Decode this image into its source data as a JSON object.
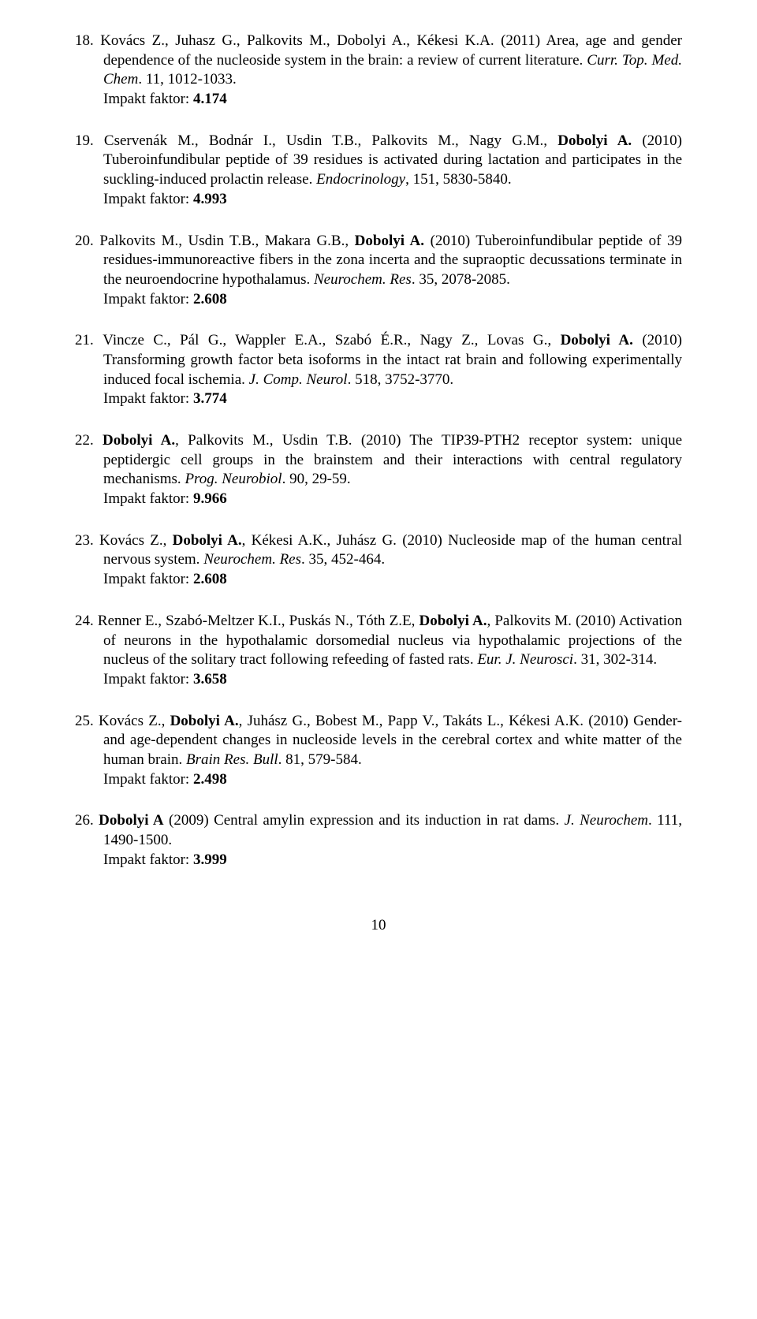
{
  "page_number": "10",
  "impact_label": "Impakt faktor: ",
  "entries": [
    {
      "num": "18.",
      "text_html": "Kovács Z., Juhasz G., Palkovits M., Dobolyi A., Kékesi K.A. (2011) Area, age and gender dependence of the nucleoside system in the brain: a review of current literature. <i>Curr. Top. Med. Chem</i>. 11, 1012-1033.",
      "impact": "4.174"
    },
    {
      "num": "19.",
      "text_html": "Cservenák M., Bodnár I., Usdin T.B., Palkovits M., Nagy G.M., <b>Dobolyi A.</b> (2010) Tuberoinfundibular peptide of 39 residues is activated during lactation and participates in the suckling-induced prolactin release. <i>Endocrinology</i>, 151, 5830-5840.",
      "impact": "4.993"
    },
    {
      "num": "20.",
      "text_html": "Palkovits M., Usdin T.B., Makara G.B., <b>Dobolyi A.</b> (2010) Tuberoinfundibular peptide of 39 residues-immunoreactive fibers in the zona incerta and the supraoptic decussations terminate in the neuroendocrine hypothalamus. <i>Neurochem. Res</i>. 35, 2078-2085.",
      "impact": "2.608"
    },
    {
      "num": "21.",
      "text_html": "Vincze C., Pál G., Wappler E.A., Szabó É.R., Nagy Z., Lovas G., <b>Dobolyi A.</b> (2010) Transforming growth factor beta isoforms in the intact rat brain and following experimentally induced focal ischemia. <i>J. Comp. Neurol</i>. 518, 3752-3770.",
      "impact": "3.774"
    },
    {
      "num": "22.",
      "text_html": "<b>Dobolyi A.</b>, Palkovits M., Usdin T.B. (2010) The TIP39-PTH2 receptor system: unique peptidergic cell groups in the brainstem and their interactions with central regulatory mechanisms. <i>Prog. Neurobiol</i>. 90, 29-59.",
      "impact": "9.966"
    },
    {
      "num": "23.",
      "text_html": "Kovács Z., <b>Dobolyi A.</b>, Kékesi A.K., Juhász G. (2010) Nucleoside map of the human central nervous system. <i>Neurochem. Res</i>. 35, 452-464.",
      "impact": "2.608"
    },
    {
      "num": "24.",
      "text_html": "Renner E., Szabó-Meltzer K.I., Puskás N., Tóth Z.E, <b>Dobolyi A.</b>, Palkovits M. (2010) Activation of neurons in the hypothalamic dorsomedial nucleus via hypothalamic projections of the nucleus of the solitary tract following refeeding of fasted rats. <i>Eur. J. Neurosci</i>. 31, 302-314.",
      "impact": "3.658"
    },
    {
      "num": "25.",
      "text_html": "Kovács Z., <b>Dobolyi A.</b>, Juhász G., Bobest M., Papp V., Takáts L., Kékesi A.K. (2010) Gender- and age-dependent changes in nucleoside levels in the cerebral cortex and white matter of the human brain. <i>Brain Res. Bull</i>. 81, 579-584.",
      "impact": "2.498"
    },
    {
      "num": "26.",
      "text_html": "<b>Dobolyi A</b> (2009) Central amylin expression and its induction in rat dams. <i>J. Neurochem</i>. 111, 1490-1500.",
      "impact": "3.999"
    }
  ]
}
